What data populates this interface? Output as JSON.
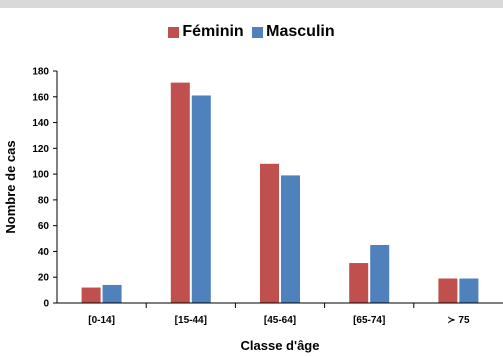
{
  "chart_data": {
    "type": "bar",
    "categories": [
      "[0-14]",
      "[15-44]",
      "[45-64]",
      "[65-74]",
      "≻ 75"
    ],
    "series": [
      {
        "name": "Féminin",
        "values": [
          12,
          171,
          108,
          31,
          19
        ],
        "color": "#c0504d"
      },
      {
        "name": "Masculin",
        "values": [
          14,
          161,
          99,
          45,
          19
        ],
        "color": "#4f81bd"
      }
    ],
    "title": "",
    "xlabel": "Classe d'âge",
    "ylabel": "Nombre de cas",
    "ylim": [
      0,
      180
    ],
    "yticks": [
      "0",
      "20",
      "40",
      "60",
      "80",
      "100",
      "120",
      "140",
      "160",
      "180"
    ],
    "grid": false,
    "legend_position": "top-center"
  }
}
